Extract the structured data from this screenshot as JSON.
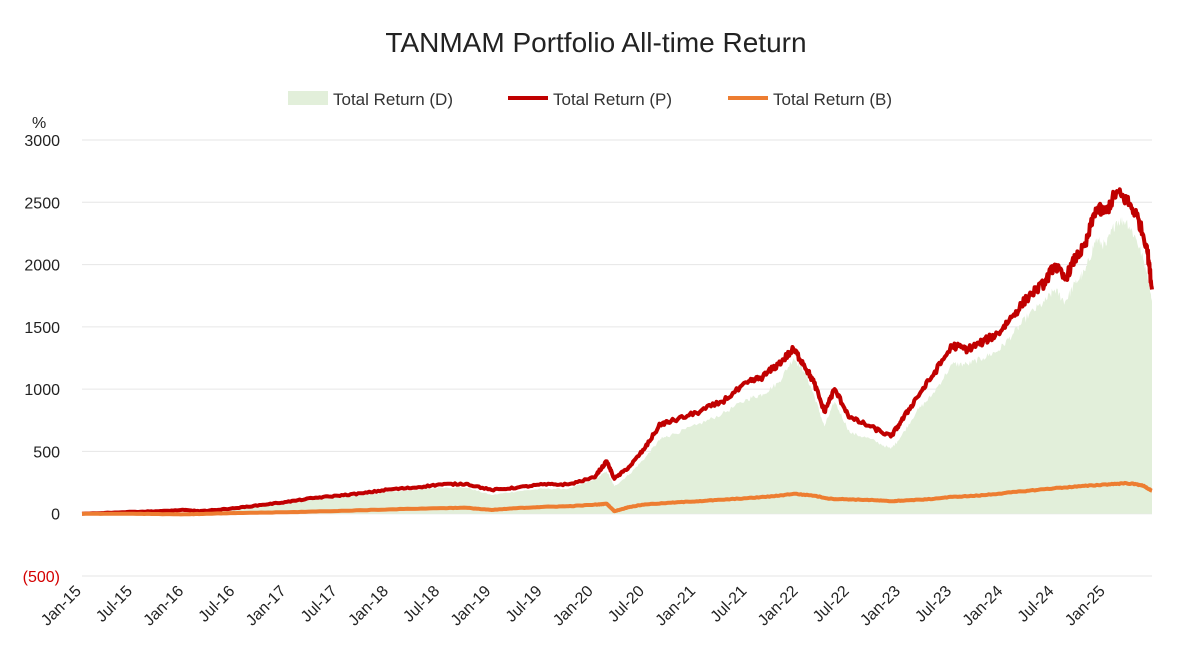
{
  "chart_data": {
    "type": "area",
    "title": "TANMAM Portfolio All-time Return",
    "ylabel": "%",
    "ylim": [
      -500,
      3000
    ],
    "yticks": [
      3000,
      2500,
      2000,
      1500,
      1000,
      500,
      0,
      -500
    ],
    "ytick_labels": [
      "3000",
      "2500",
      "2000",
      "1500",
      "1000",
      "500",
      "0",
      "(500)"
    ],
    "x_categories": [
      "Jan-15",
      "Jul-15",
      "Jan-16",
      "Jul-16",
      "Jan-17",
      "Jul-17",
      "Jan-18",
      "Jul-18",
      "Jan-19",
      "Jul-19",
      "Jan-20",
      "Jul-20",
      "Jan-21",
      "Jul-21",
      "Jan-22",
      "Jul-22",
      "Jan-23",
      "Jul-23",
      "Jan-24",
      "Jul-24",
      "Jan-25"
    ],
    "x_end_index": 20.9,
    "grid": true,
    "legend_position": "top-center",
    "series": [
      {
        "name": "Total Return (D)",
        "kind": "area",
        "color": "#e2efda",
        "points": [
          [
            0,
            0
          ],
          [
            1,
            10
          ],
          [
            2,
            10
          ],
          [
            2.5,
            25
          ],
          [
            3,
            35
          ],
          [
            3.5,
            60
          ],
          [
            4,
            85
          ],
          [
            4.5,
            110
          ],
          [
            5,
            130
          ],
          [
            5.5,
            150
          ],
          [
            6,
            175
          ],
          [
            6.5,
            190
          ],
          [
            7,
            210
          ],
          [
            7.5,
            210
          ],
          [
            8,
            150
          ],
          [
            8.5,
            180
          ],
          [
            9,
            200
          ],
          [
            9.5,
            200
          ],
          [
            10,
            270
          ],
          [
            10.25,
            340
          ],
          [
            10.4,
            220
          ],
          [
            10.7,
            320
          ],
          [
            11,
            450
          ],
          [
            11.3,
            600
          ],
          [
            11.5,
            630
          ],
          [
            12,
            710
          ],
          [
            12.5,
            800
          ],
          [
            13,
            920
          ],
          [
            13.3,
            960
          ],
          [
            13.6,
            1050
          ],
          [
            13.9,
            1250
          ],
          [
            14.1,
            1150
          ],
          [
            14.3,
            950
          ],
          [
            14.5,
            700
          ],
          [
            14.7,
            900
          ],
          [
            15,
            650
          ],
          [
            15.4,
            600
          ],
          [
            15.8,
            520
          ],
          [
            16,
            620
          ],
          [
            16.3,
            820
          ],
          [
            16.6,
            950
          ],
          [
            17,
            1200
          ],
          [
            17.3,
            1200
          ],
          [
            17.6,
            1250
          ],
          [
            17.9,
            1310
          ],
          [
            18.2,
            1450
          ],
          [
            18.5,
            1600
          ],
          [
            18.8,
            1700
          ],
          [
            19,
            1800
          ],
          [
            19.2,
            1700
          ],
          [
            19.4,
            1850
          ],
          [
            19.6,
            1950
          ],
          [
            19.8,
            2200
          ],
          [
            20,
            2150
          ],
          [
            20.2,
            2350
          ],
          [
            20.4,
            2350
          ],
          [
            20.6,
            2200
          ],
          [
            20.8,
            1950
          ],
          [
            20.9,
            1700
          ]
        ]
      },
      {
        "name": "Total Return (P)",
        "kind": "line",
        "color": "#c00000",
        "points": [
          [
            0,
            0
          ],
          [
            1,
            15
          ],
          [
            1.5,
            20
          ],
          [
            2,
            30
          ],
          [
            2.3,
            20
          ],
          [
            2.6,
            30
          ],
          [
            3,
            45
          ],
          [
            3.5,
            70
          ],
          [
            4,
            95
          ],
          [
            4.5,
            125
          ],
          [
            5,
            145
          ],
          [
            5.5,
            165
          ],
          [
            6,
            195
          ],
          [
            6.5,
            210
          ],
          [
            7,
            235
          ],
          [
            7.5,
            240
          ],
          [
            8,
            190
          ],
          [
            8.5,
            210
          ],
          [
            9,
            235
          ],
          [
            9.5,
            235
          ],
          [
            10,
            290
          ],
          [
            10.25,
            420
          ],
          [
            10.4,
            280
          ],
          [
            10.7,
            380
          ],
          [
            11,
            530
          ],
          [
            11.3,
            720
          ],
          [
            11.5,
            740
          ],
          [
            12,
            810
          ],
          [
            12.5,
            900
          ],
          [
            13,
            1050
          ],
          [
            13.3,
            1100
          ],
          [
            13.6,
            1200
          ],
          [
            13.9,
            1320
          ],
          [
            14.1,
            1200
          ],
          [
            14.3,
            1050
          ],
          [
            14.5,
            820
          ],
          [
            14.7,
            1000
          ],
          [
            15,
            770
          ],
          [
            15.4,
            700
          ],
          [
            15.8,
            620
          ],
          [
            16,
            740
          ],
          [
            16.3,
            930
          ],
          [
            16.6,
            1100
          ],
          [
            17,
            1350
          ],
          [
            17.3,
            1320
          ],
          [
            17.6,
            1380
          ],
          [
            17.9,
            1450
          ],
          [
            18.2,
            1600
          ],
          [
            18.5,
            1750
          ],
          [
            18.8,
            1850
          ],
          [
            19,
            2000
          ],
          [
            19.2,
            1880
          ],
          [
            19.4,
            2050
          ],
          [
            19.6,
            2150
          ],
          [
            19.8,
            2450
          ],
          [
            20,
            2420
          ],
          [
            20.2,
            2580
          ],
          [
            20.4,
            2520
          ],
          [
            20.6,
            2400
          ],
          [
            20.8,
            2150
          ],
          [
            20.9,
            1800
          ]
        ]
      },
      {
        "name": "Total Return (B)",
        "kind": "line",
        "color": "#ed7d31",
        "points": [
          [
            0,
            0
          ],
          [
            1,
            0
          ],
          [
            2,
            -5
          ],
          [
            2.5,
            0
          ],
          [
            3,
            5
          ],
          [
            4,
            12
          ],
          [
            5,
            22
          ],
          [
            6,
            35
          ],
          [
            7,
            45
          ],
          [
            7.5,
            48
          ],
          [
            8,
            30
          ],
          [
            8.5,
            45
          ],
          [
            9,
            55
          ],
          [
            9.5,
            60
          ],
          [
            10,
            72
          ],
          [
            10.25,
            80
          ],
          [
            10.4,
            20
          ],
          [
            10.7,
            55
          ],
          [
            11,
            75
          ],
          [
            11.5,
            88
          ],
          [
            12,
            100
          ],
          [
            12.5,
            112
          ],
          [
            13,
            125
          ],
          [
            13.5,
            140
          ],
          [
            13.9,
            160
          ],
          [
            14.3,
            145
          ],
          [
            14.6,
            120
          ],
          [
            15,
            115
          ],
          [
            15.4,
            110
          ],
          [
            15.8,
            100
          ],
          [
            16,
            105
          ],
          [
            16.5,
            115
          ],
          [
            17,
            135
          ],
          [
            17.5,
            145
          ],
          [
            18,
            165
          ],
          [
            18.5,
            185
          ],
          [
            19,
            205
          ],
          [
            19.5,
            220
          ],
          [
            20,
            235
          ],
          [
            20.4,
            245
          ],
          [
            20.7,
            230
          ],
          [
            20.9,
            185
          ]
        ]
      }
    ]
  }
}
